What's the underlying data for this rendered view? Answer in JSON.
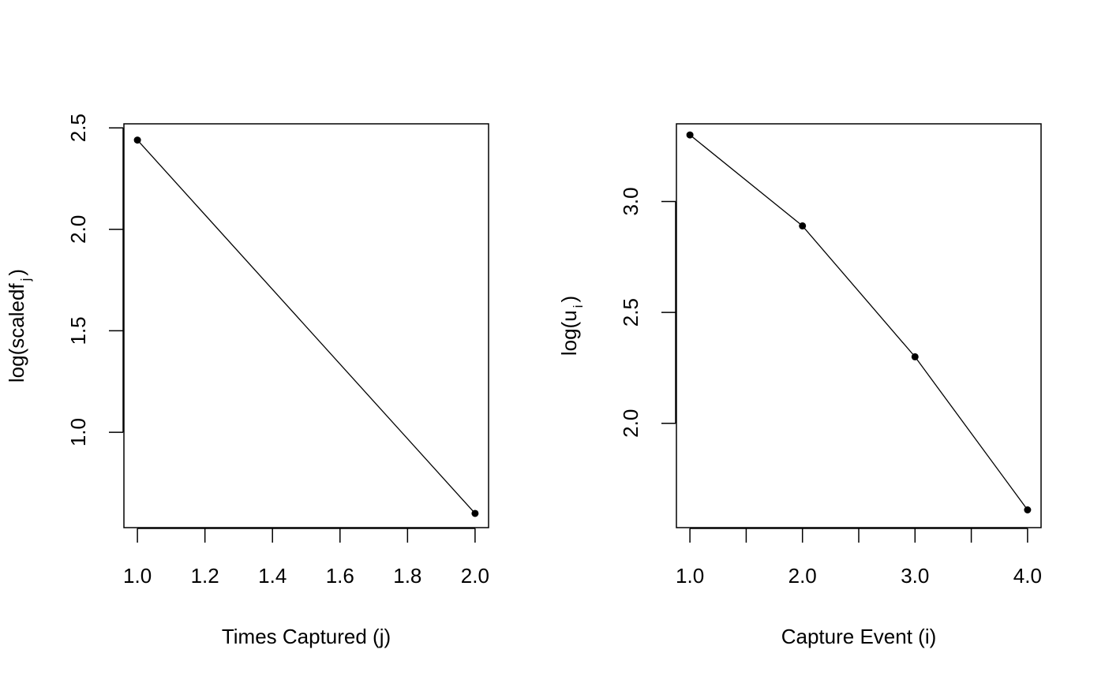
{
  "chart_data": [
    {
      "type": "line",
      "title": "",
      "xlabel": "Times Captured (j)",
      "ylabel": {
        "pre": "log(scaledf",
        "sub": "j",
        "post": ")"
      },
      "x_ticks": [
        "1.0",
        "1.2",
        "1.4",
        "1.6",
        "1.8",
        "2.0"
      ],
      "y_ticks": [
        "1.0",
        "1.5",
        "2.0",
        "2.5"
      ],
      "xlim": [
        0.96,
        2.04
      ],
      "ylim": [
        0.53,
        2.52
      ],
      "grid": false,
      "marker": "filled-circle",
      "series": [
        {
          "x": [
            1,
            2
          ],
          "y": [
            2.44,
            0.6
          ]
        }
      ]
    },
    {
      "type": "line",
      "title": "",
      "xlabel": "Capture Event (i)",
      "ylabel": {
        "pre": "log(u",
        "sub": "i",
        "post": ")"
      },
      "x_ticks": [
        "1.0",
        "2.0",
        "3.0",
        "4.0"
      ],
      "x_minor_ticks": [
        1.5,
        2.5,
        3.5
      ],
      "y_ticks": [
        "2.0",
        "2.5",
        "3.0"
      ],
      "xlim": [
        0.88,
        4.12
      ],
      "ylim": [
        1.53,
        3.35
      ],
      "grid": false,
      "marker": "filled-circle",
      "series": [
        {
          "x": [
            1,
            2,
            3,
            4
          ],
          "y": [
            3.3,
            2.89,
            2.3,
            1.61
          ]
        }
      ]
    }
  ]
}
